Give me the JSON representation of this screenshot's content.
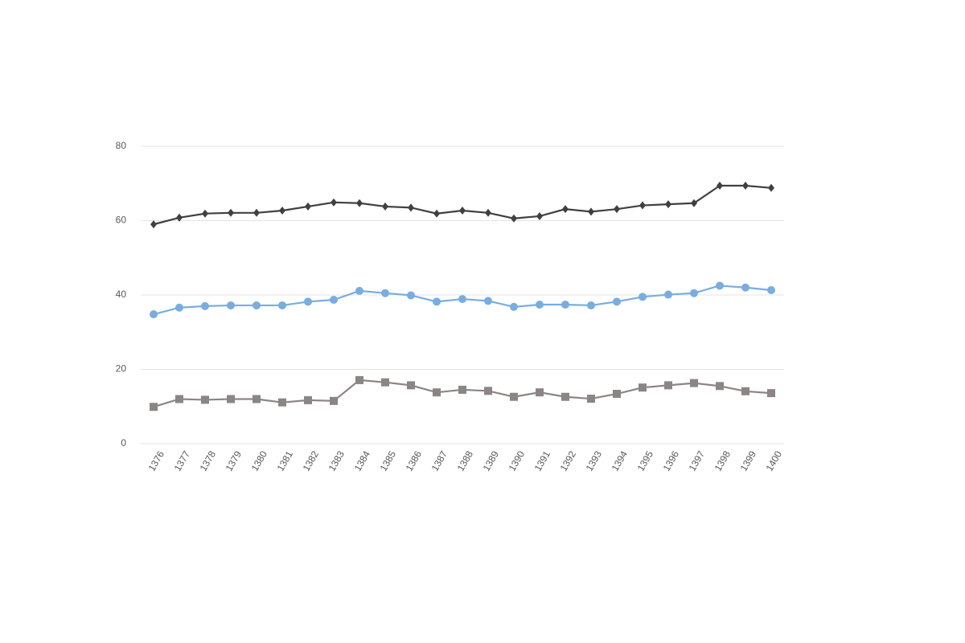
{
  "chart_data": {
    "type": "line",
    "categories": [
      "1376",
      "1377",
      "1378",
      "1379",
      "1380",
      "1381",
      "1382",
      "1383",
      "1384",
      "1385",
      "1386",
      "1387",
      "1388",
      "1389",
      "1390",
      "1391",
      "1392",
      "1393",
      "1394",
      "1395",
      "1396",
      "1397",
      "1398",
      "1399",
      "1400"
    ],
    "series": [
      {
        "color": "#404040",
        "marker": "diamond",
        "values": [
          59.0,
          60.8,
          61.9,
          62.1,
          62.1,
          62.7,
          63.8,
          64.9,
          64.7,
          63.8,
          63.5,
          61.9,
          62.7,
          62.1,
          60.6,
          61.2,
          63.1,
          62.4,
          63.1,
          64.1,
          64.4,
          64.7,
          69.4,
          69.4,
          68.8
        ]
      },
      {
        "color": "#7aaddf",
        "marker": "circle",
        "values": [
          34.8,
          36.6,
          37.0,
          37.2,
          37.2,
          37.2,
          38.2,
          38.7,
          41.1,
          40.5,
          39.9,
          38.2,
          38.9,
          38.4,
          36.8,
          37.4,
          37.4,
          37.2,
          38.2,
          39.5,
          40.1,
          40.5,
          42.5,
          42.0,
          41.3
        ]
      },
      {
        "color": "#8c8585",
        "marker": "square",
        "values": [
          9.9,
          12.0,
          11.8,
          12.0,
          12.0,
          11.1,
          11.7,
          11.5,
          17.1,
          16.5,
          15.7,
          13.8,
          14.5,
          14.2,
          12.6,
          13.8,
          12.6,
          12.1,
          13.4,
          15.1,
          15.7,
          16.3,
          15.5,
          14.1,
          13.6
        ]
      }
    ],
    "ylim": [
      0,
      80
    ],
    "yticks": [
      0,
      20,
      40,
      60,
      80
    ],
    "grid": true
  }
}
